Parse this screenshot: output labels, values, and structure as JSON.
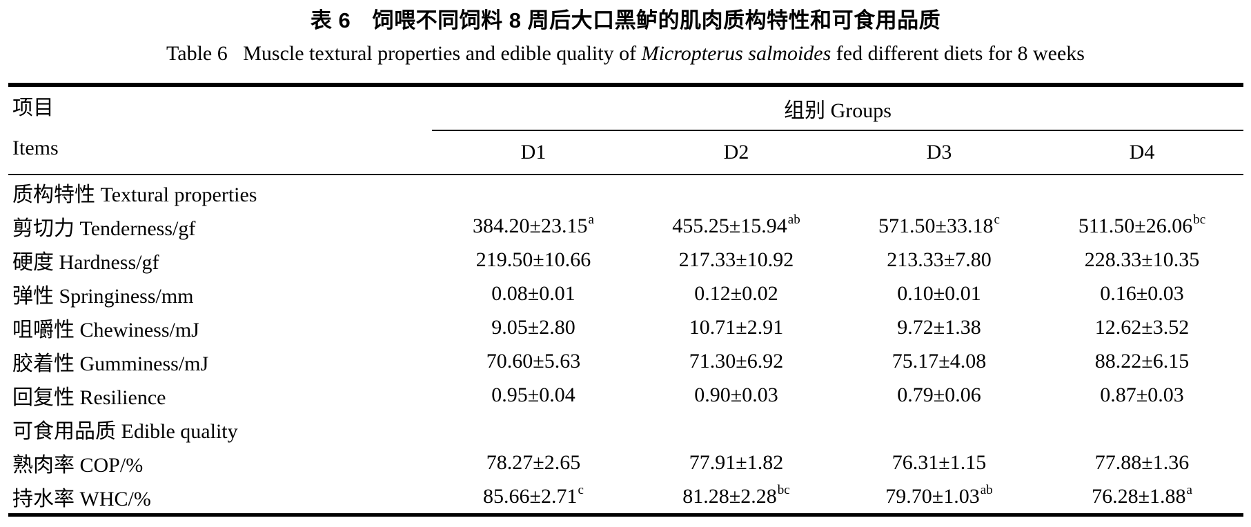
{
  "title": {
    "chinese": "表 6　饲喂不同饲料 8 周后大口黑鲈的肌肉质构特性和可食用品质",
    "english_prefix": "Table 6   Muscle textural properties and edible quality of ",
    "english_species": "Micropterus salmoides",
    "english_suffix": " fed different diets for 8 weeks"
  },
  "table": {
    "items_header_cn": "项目",
    "items_header_en": "Items",
    "groups_header": "组别 Groups",
    "group_columns": [
      "D1",
      "D2",
      "D3",
      "D4"
    ],
    "rows": [
      {
        "label": "质构特性 Textural properties",
        "section": true,
        "values": null
      },
      {
        "label": "剪切力 Tenderness/gf",
        "section": false,
        "values": [
          {
            "v": "384.20±23.15",
            "s": "a"
          },
          {
            "v": "455.25±15.94",
            "s": "ab"
          },
          {
            "v": "571.50±33.18",
            "s": "c"
          },
          {
            "v": "511.50±26.06",
            "s": "bc"
          }
        ]
      },
      {
        "label": "硬度 Hardness/gf",
        "section": false,
        "values": [
          {
            "v": "219.50±10.66",
            "s": ""
          },
          {
            "v": "217.33±10.92",
            "s": ""
          },
          {
            "v": "213.33±7.80",
            "s": ""
          },
          {
            "v": "228.33±10.35",
            "s": ""
          }
        ]
      },
      {
        "label": "弹性 Springiness/mm",
        "section": false,
        "values": [
          {
            "v": "0.08±0.01",
            "s": ""
          },
          {
            "v": "0.12±0.02",
            "s": ""
          },
          {
            "v": "0.10±0.01",
            "s": ""
          },
          {
            "v": "0.16±0.03",
            "s": ""
          }
        ]
      },
      {
        "label": "咀嚼性 Chewiness/mJ",
        "section": false,
        "values": [
          {
            "v": "9.05±2.80",
            "s": ""
          },
          {
            "v": "10.71±2.91",
            "s": ""
          },
          {
            "v": "9.72±1.38",
            "s": ""
          },
          {
            "v": "12.62±3.52",
            "s": ""
          }
        ]
      },
      {
        "label": "胶着性 Gumminess/mJ",
        "section": false,
        "values": [
          {
            "v": "70.60±5.63",
            "s": ""
          },
          {
            "v": "71.30±6.92",
            "s": ""
          },
          {
            "v": "75.17±4.08",
            "s": ""
          },
          {
            "v": "88.22±6.15",
            "s": ""
          }
        ]
      },
      {
        "label": "回复性 Resilience",
        "section": false,
        "values": [
          {
            "v": "0.95±0.04",
            "s": ""
          },
          {
            "v": "0.90±0.03",
            "s": ""
          },
          {
            "v": "0.79±0.06",
            "s": ""
          },
          {
            "v": "0.87±0.03",
            "s": ""
          }
        ]
      },
      {
        "label": "可食用品质 Edible quality",
        "section": true,
        "values": null
      },
      {
        "label": "熟肉率 COP/%",
        "section": false,
        "values": [
          {
            "v": "78.27±2.65",
            "s": ""
          },
          {
            "v": "77.91±1.82",
            "s": ""
          },
          {
            "v": "76.31±1.15",
            "s": ""
          },
          {
            "v": "77.88±1.36",
            "s": ""
          }
        ]
      },
      {
        "label": "持水率 WHC/%",
        "section": false,
        "values": [
          {
            "v": "85.66±2.71",
            "s": "c"
          },
          {
            "v": "81.28±2.28",
            "s": "bc"
          },
          {
            "v": "79.70±1.03",
            "s": "ab"
          },
          {
            "v": "76.28±1.88",
            "s": "a"
          }
        ]
      }
    ]
  },
  "colors": {
    "text": "#000000",
    "background": "#ffffff",
    "rule": "#000000"
  }
}
